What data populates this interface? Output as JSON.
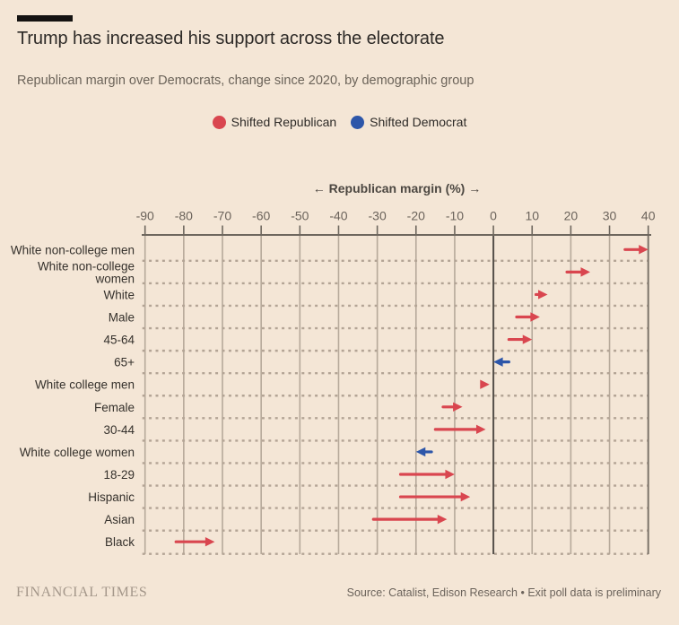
{
  "header": {},
  "chart_data": {
    "type": "arrow",
    "title": "Trump has increased his support across the electorate",
    "subtitle": "Republican margin over Democrats, change since 2020, by demographic group",
    "xlabel": "← Republican margin (%) →",
    "xlim": [
      -90,
      40
    ],
    "xticks": [
      -90,
      -80,
      -70,
      -60,
      -50,
      -40,
      -30,
      -20,
      -10,
      0,
      10,
      20,
      30,
      40
    ],
    "grid": "vertical-gridlines-with-dotted-row-separators",
    "legend_position": "top-center",
    "legend": [
      {
        "key": "republican",
        "label": "Shifted Republican",
        "color": "#d9464f"
      },
      {
        "key": "democrat",
        "label": "Shifted Democrat",
        "color": "#2d56a9"
      }
    ],
    "colors": {
      "republican": "#d9464f",
      "democrat": "#2d56a9"
    },
    "value_meaning": "arrow tail = 2020 margin, arrow tip = 2024 margin, percentage points",
    "rows": [
      {
        "label": "White non-college men",
        "start": 34,
        "end": 40,
        "shift": "republican"
      },
      {
        "label": "White non-college women",
        "start": 19,
        "end": 25,
        "shift": "republican"
      },
      {
        "label": "White",
        "start": 11,
        "end": 14,
        "shift": "republican"
      },
      {
        "label": "Male",
        "start": 6,
        "end": 12,
        "shift": "republican"
      },
      {
        "label": "45-64",
        "start": 4,
        "end": 10,
        "shift": "republican"
      },
      {
        "label": "65+",
        "start": 4,
        "end": 0,
        "shift": "democrat"
      },
      {
        "label": "White college men",
        "start": -3,
        "end": -1,
        "shift": "republican"
      },
      {
        "label": "Female",
        "start": -13,
        "end": -8,
        "shift": "republican"
      },
      {
        "label": "30-44",
        "start": -15,
        "end": -2,
        "shift": "republican"
      },
      {
        "label": "White college women",
        "start": -16,
        "end": -20,
        "shift": "democrat"
      },
      {
        "label": "18-29",
        "start": -24,
        "end": -10,
        "shift": "republican"
      },
      {
        "label": "Hispanic",
        "start": -24,
        "end": -6,
        "shift": "republican"
      },
      {
        "label": "Asian",
        "start": -31,
        "end": -12,
        "shift": "republican"
      },
      {
        "label": "Black",
        "start": -82,
        "end": -72,
        "shift": "republican"
      }
    ]
  },
  "footer": {
    "brand": "FINANCIAL TIMES",
    "source": "Source: Catalist, Edison Research • Exit poll data is preliminary"
  }
}
